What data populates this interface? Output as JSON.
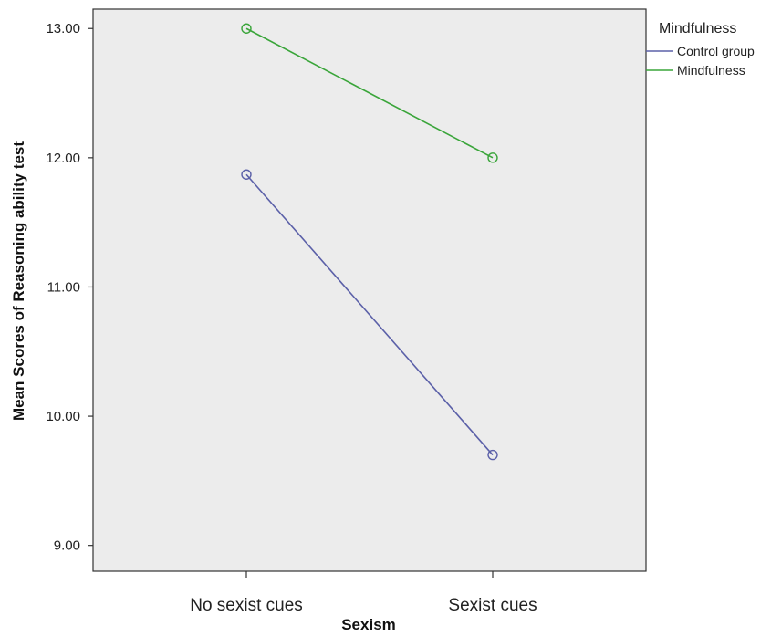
{
  "chart_data": {
    "type": "line",
    "xlabel": "Sexism",
    "ylabel": "Mean Scores of Reasoning ability test",
    "categories": [
      "No sexist cues",
      "Sexist cues"
    ],
    "ylim": [
      8.8,
      13.15
    ],
    "yticks": [
      9.0,
      10.0,
      11.0,
      12.0,
      13.0
    ],
    "ytick_labels": [
      "9.00",
      "10.00",
      "11.00",
      "12.00",
      "13.00"
    ],
    "series": [
      {
        "name": "Control group",
        "values": [
          11.87,
          9.7
        ],
        "color": "#5b60a8",
        "marker": "circle"
      },
      {
        "name": "Mindfulness",
        "values": [
          13.0,
          12.0
        ],
        "color": "#3aa53a",
        "marker": "circle"
      }
    ],
    "legend": {
      "title": "Mindfulness",
      "position": "top-right, outside plot area"
    },
    "grid": false,
    "plot_background": "#ececec"
  }
}
